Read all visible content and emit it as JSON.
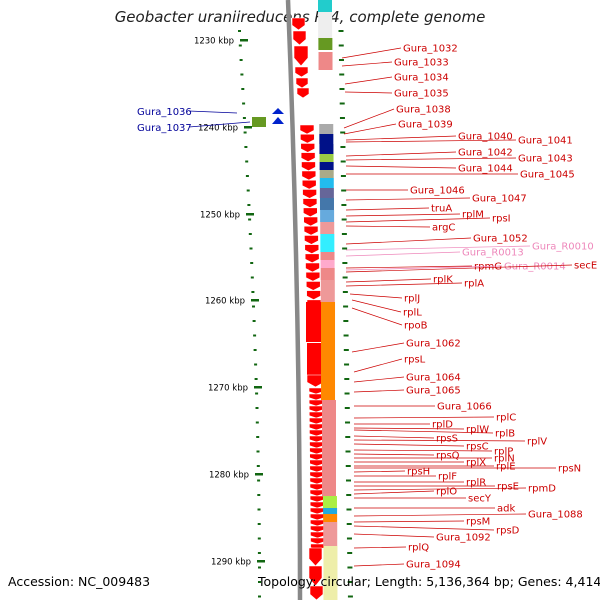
{
  "title": "Geobacter uraniireducens Rf4, complete genome",
  "footer": {
    "accession": "Accession: NC_009483",
    "info": "Topology: circular; Length: 5,136,364 bp; Genes: 4,414"
  },
  "colors": {
    "gene_red": "#ff0000",
    "label_red": "#cc0000",
    "label_pink": "#ee88bb",
    "label_blue": "#000099",
    "tick_green": "#116611",
    "backbone": "#888888"
  },
  "scale": {
    "ticks": [
      "1230 kbp",
      "1240 kbp",
      "1250 kbp",
      "1260 kbp",
      "1270 kbp",
      "1280 kbp",
      "1290 kbp"
    ]
  },
  "left_labels": [
    {
      "name": "Gura_1036"
    },
    {
      "name": "Gura_1037"
    }
  ],
  "right_labels": [
    {
      "name": "Gura_1032",
      "color": "red"
    },
    {
      "name": "Gura_1033",
      "color": "red"
    },
    {
      "name": "Gura_1034",
      "color": "red"
    },
    {
      "name": "Gura_1035",
      "color": "red"
    },
    {
      "name": "Gura_1038",
      "color": "red"
    },
    {
      "name": "Gura_1039",
      "color": "red"
    },
    {
      "name": "Gura_1040",
      "color": "red"
    },
    {
      "name": "Gura_1041",
      "color": "red"
    },
    {
      "name": "Gura_1042",
      "color": "red"
    },
    {
      "name": "Gura_1043",
      "color": "red"
    },
    {
      "name": "Gura_1044",
      "color": "red"
    },
    {
      "name": "Gura_1045",
      "color": "red"
    },
    {
      "name": "Gura_1046",
      "color": "red"
    },
    {
      "name": "Gura_1047",
      "color": "red"
    },
    {
      "name": "truA",
      "color": "red"
    },
    {
      "name": "rplM",
      "color": "red"
    },
    {
      "name": "rpsI",
      "color": "red"
    },
    {
      "name": "argC",
      "color": "red"
    },
    {
      "name": "Gura_1052",
      "color": "red"
    },
    {
      "name": "Gura_R0010",
      "color": "pink"
    },
    {
      "name": "Gura_R0013",
      "color": "pink"
    },
    {
      "name": "rpmG",
      "color": "red"
    },
    {
      "name": "Gura_R0014",
      "color": "pink"
    },
    {
      "name": "secE",
      "color": "red"
    },
    {
      "name": "rplK",
      "color": "red"
    },
    {
      "name": "rplA",
      "color": "red"
    },
    {
      "name": "rplJ",
      "color": "red"
    },
    {
      "name": "rplL",
      "color": "red"
    },
    {
      "name": "rpoB",
      "color": "red"
    },
    {
      "name": "Gura_1062",
      "color": "red"
    },
    {
      "name": "rpsL",
      "color": "red"
    },
    {
      "name": "Gura_1064",
      "color": "red"
    },
    {
      "name": "Gura_1065",
      "color": "red"
    },
    {
      "name": "Gura_1066",
      "color": "red"
    },
    {
      "name": "rplC",
      "color": "red"
    },
    {
      "name": "rplD",
      "color": "red"
    },
    {
      "name": "rplW",
      "color": "red"
    },
    {
      "name": "rplB",
      "color": "red"
    },
    {
      "name": "rpsS",
      "color": "red"
    },
    {
      "name": "rplV",
      "color": "red"
    },
    {
      "name": "rpsC",
      "color": "red"
    },
    {
      "name": "rplP",
      "color": "red"
    },
    {
      "name": "rpsQ",
      "color": "red"
    },
    {
      "name": "rplN",
      "color": "red"
    },
    {
      "name": "rplX",
      "color": "red"
    },
    {
      "name": "rplE",
      "color": "red"
    },
    {
      "name": "rpsN",
      "color": "red"
    },
    {
      "name": "rpsH",
      "color": "red"
    },
    {
      "name": "rplF",
      "color": "red"
    },
    {
      "name": "rplR",
      "color": "red"
    },
    {
      "name": "rpsE",
      "color": "red"
    },
    {
      "name": "rpmD",
      "color": "red"
    },
    {
      "name": "rplO",
      "color": "red"
    },
    {
      "name": "secY",
      "color": "red"
    },
    {
      "name": "adk",
      "color": "red"
    },
    {
      "name": "Gura_1088",
      "color": "red"
    },
    {
      "name": "rpsM",
      "color": "red"
    },
    {
      "name": "rpsD",
      "color": "red"
    },
    {
      "name": "Gura_1092",
      "color": "red"
    },
    {
      "name": "rplQ",
      "color": "red"
    },
    {
      "name": "Gura_1094",
      "color": "red"
    }
  ]
}
